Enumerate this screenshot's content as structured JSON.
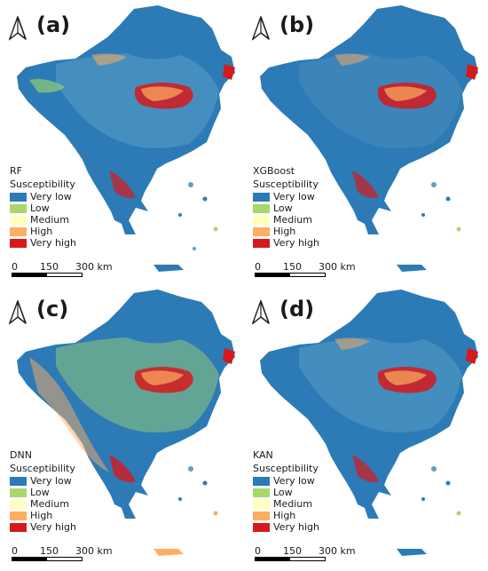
{
  "panels": [
    {
      "id": "a",
      "tag": "(a)",
      "model": "RF"
    },
    {
      "id": "b",
      "tag": "(b)",
      "model": "XGBoost"
    },
    {
      "id": "c",
      "tag": "(c)",
      "model": "DNN"
    },
    {
      "id": "d",
      "tag": "(d)",
      "model": "KAN"
    }
  ],
  "legend": {
    "title": "Susceptibility",
    "classes": [
      {
        "label": "Very low",
        "color": "#2c7bb6"
      },
      {
        "label": "Low",
        "color": "#a6d96a"
      },
      {
        "label": "Medium",
        "color": "#ffffbf"
      },
      {
        "label": "High",
        "color": "#fdae61"
      },
      {
        "label": "Very high",
        "color": "#d7191c"
      }
    ]
  },
  "scale": {
    "labels": [
      "0",
      "150",
      "300 km"
    ]
  }
}
